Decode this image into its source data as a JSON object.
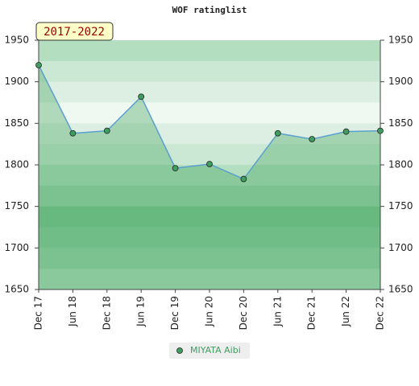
{
  "chart_data": {
    "type": "line",
    "title": "WOF ratinglist",
    "period_label": "2017-2022",
    "categories": [
      "Dec 17",
      "Jun 18",
      "Dec 18",
      "Jun 19",
      "Dec 19",
      "Jun 20",
      "Dec 20",
      "Jun 21",
      "Dec 21",
      "Jun 22",
      "Dec 22"
    ],
    "series": [
      {
        "name": "MIYATA Aibi",
        "color": "#5b9fd0",
        "marker_color": "#3f9e5f",
        "values": [
          1920,
          1838,
          1841,
          1882,
          1796,
          1801,
          1783,
          1838,
          1831,
          1840,
          1841
        ]
      }
    ],
    "ylim": [
      1650,
      1950
    ],
    "yticks": [
      1650,
      1700,
      1750,
      1800,
      1850,
      1900,
      1950
    ],
    "right_axis": true
  }
}
